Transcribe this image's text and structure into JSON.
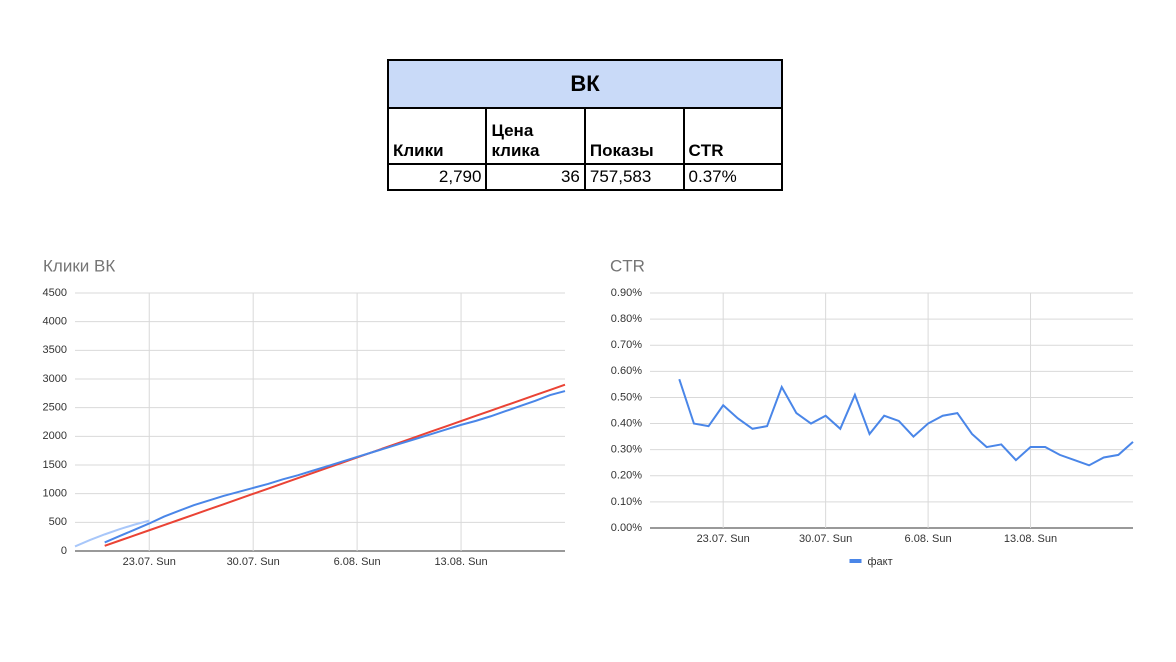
{
  "table": {
    "title": "ВК",
    "columns": [
      "Клики",
      "Цена клика",
      "Показы",
      "CTR"
    ],
    "rows": [
      [
        "2,790",
        "36",
        "757,583",
        "0.37%"
      ]
    ]
  },
  "chart_data": [
    {
      "type": "line",
      "title": "Клики ВК",
      "categories": [
        null,
        null,
        null,
        null,
        null,
        "23.07. Sun",
        null,
        null,
        null,
        null,
        null,
        null,
        "30.07. Sun",
        null,
        null,
        null,
        null,
        null,
        null,
        "6.08. Sun",
        null,
        null,
        null,
        null,
        null,
        null,
        "13.08. Sun",
        null,
        null,
        null,
        null,
        null,
        null,
        null
      ],
      "series": [
        {
          "color": "#a8c7fa",
          "values": [
            80,
            190,
            290,
            380,
            460,
            530,
            null,
            null,
            null,
            null,
            null,
            null,
            null,
            null,
            null,
            null,
            null,
            null,
            null,
            null,
            null,
            null,
            null,
            null,
            null,
            null,
            null,
            null,
            null,
            null,
            null,
            null,
            null,
            null
          ]
        },
        {
          "color": "#ea4335",
          "values": [
            null,
            null,
            90,
            181,
            271,
            362,
            453,
            543,
            634,
            725,
            815,
            906,
            997,
            1087,
            1178,
            1269,
            1359,
            1450,
            1541,
            1631,
            1722,
            1813,
            1903,
            1994,
            2085,
            2175,
            2266,
            2357,
            2447,
            2538,
            2629,
            2719,
            2810,
            2900
          ]
        },
        {
          "color": "#4a86e8",
          "values": [
            null,
            null,
            150,
            260,
            370,
            480,
            600,
            700,
            800,
            880,
            960,
            1030,
            1100,
            1170,
            1250,
            1320,
            1400,
            1480,
            1560,
            1640,
            1720,
            1800,
            1880,
            1960,
            2040,
            2120,
            2200,
            2270,
            2350,
            2440,
            2530,
            2620,
            2720,
            2790
          ]
        }
      ],
      "ylim": [
        0,
        4500
      ],
      "yticks": [
        0,
        500,
        1000,
        1500,
        2000,
        2500,
        3000,
        3500,
        4000,
        4500
      ],
      "grid": true
    },
    {
      "type": "line",
      "title": "CTR",
      "categories": [
        null,
        null,
        null,
        null,
        null,
        "23.07. Sun",
        null,
        null,
        null,
        null,
        null,
        null,
        "30.07. Sun",
        null,
        null,
        null,
        null,
        null,
        null,
        "6.08. Sun",
        null,
        null,
        null,
        null,
        null,
        null,
        "13.08. Sun",
        null,
        null,
        null,
        null,
        null,
        null,
        null
      ],
      "series": [
        {
          "name": "факт",
          "color": "#4a86e8",
          "values": [
            null,
            null,
            0.57,
            0.4,
            0.39,
            0.47,
            0.42,
            0.38,
            0.39,
            0.54,
            0.44,
            0.4,
            0.43,
            0.38,
            0.51,
            0.36,
            0.43,
            0.41,
            0.35,
            0.4,
            0.43,
            0.44,
            0.36,
            0.31,
            0.32,
            0.26,
            0.31,
            0.31,
            0.28,
            0.26,
            0.24,
            0.27,
            0.28,
            0.33
          ]
        }
      ],
      "ylim": [
        0,
        0.9
      ],
      "yticks": [
        {
          "value": 0,
          "label": "0.00%"
        },
        {
          "value": 0.1,
          "label": "0.10%"
        },
        {
          "value": 0.2,
          "label": "0.20%"
        },
        {
          "value": 0.3,
          "label": "0.30%"
        },
        {
          "value": 0.4,
          "label": "0.40%"
        },
        {
          "value": 0.5,
          "label": "0.50%"
        },
        {
          "value": 0.6,
          "label": "0.60%"
        },
        {
          "value": 0.7,
          "label": "0.70%"
        },
        {
          "value": 0.8,
          "label": "0.80%"
        },
        {
          "value": 0.9,
          "label": "0.90%"
        }
      ],
      "grid": true,
      "legend": "bottom"
    }
  ]
}
